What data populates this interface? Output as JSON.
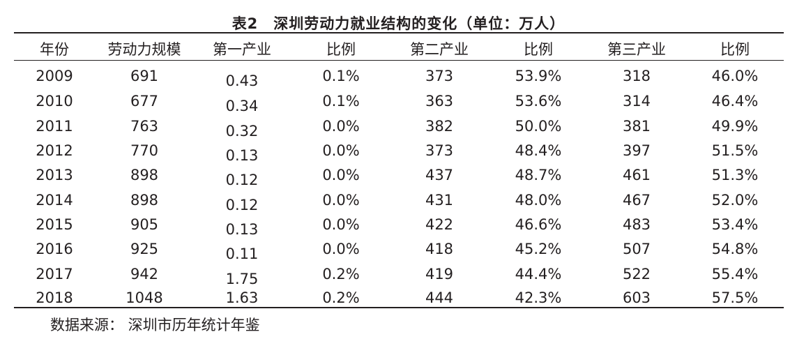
{
  "title": "表2　深圳劳动力就业结构的变化（单位：万人）",
  "headers": [
    "年份",
    "劳动力规模",
    "第一产业",
    "比例",
    "第二产业",
    "比例",
    "第三产业",
    "比例"
  ],
  "rows": [
    [
      "2009",
      "691",
      "0.43",
      "0.1%",
      "373",
      "53.9%",
      "318",
      "46.0%"
    ],
    [
      "2010",
      "677",
      "0.34",
      "0.1%",
      "363",
      "53.6%",
      "314",
      "46.4%"
    ],
    [
      "2011",
      "763",
      "0.32",
      "0.0%",
      "382",
      "50.0%",
      "381",
      "49.9%"
    ],
    [
      "2012",
      "770",
      "0.13",
      "0.0%",
      "373",
      "48.4%",
      "397",
      "51.5%"
    ],
    [
      "2013",
      "898",
      "0.12",
      "0.0%",
      "437",
      "48.7%",
      "461",
      "51.3%"
    ],
    [
      "2014",
      "898",
      "0.12",
      "0.0%",
      "431",
      "48.0%",
      "467",
      "52.0%"
    ],
    [
      "2015",
      "905",
      "0.13",
      "0.0%",
      "422",
      "46.6%",
      "483",
      "53.4%"
    ],
    [
      "2016",
      "925",
      "0.11",
      "0.0%",
      "418",
      "45.2%",
      "507",
      "54.8%"
    ],
    [
      "2017",
      "942",
      "1.75",
      "0.2%",
      "419",
      "44.4%",
      "522",
      "55.4%"
    ],
    [
      "2018",
      "1048",
      "1.63",
      "0.2%",
      "444",
      "42.3%",
      "603",
      "57.5%"
    ]
  ],
  "source": "数据来源：  深圳市历年统计年鉴"
}
